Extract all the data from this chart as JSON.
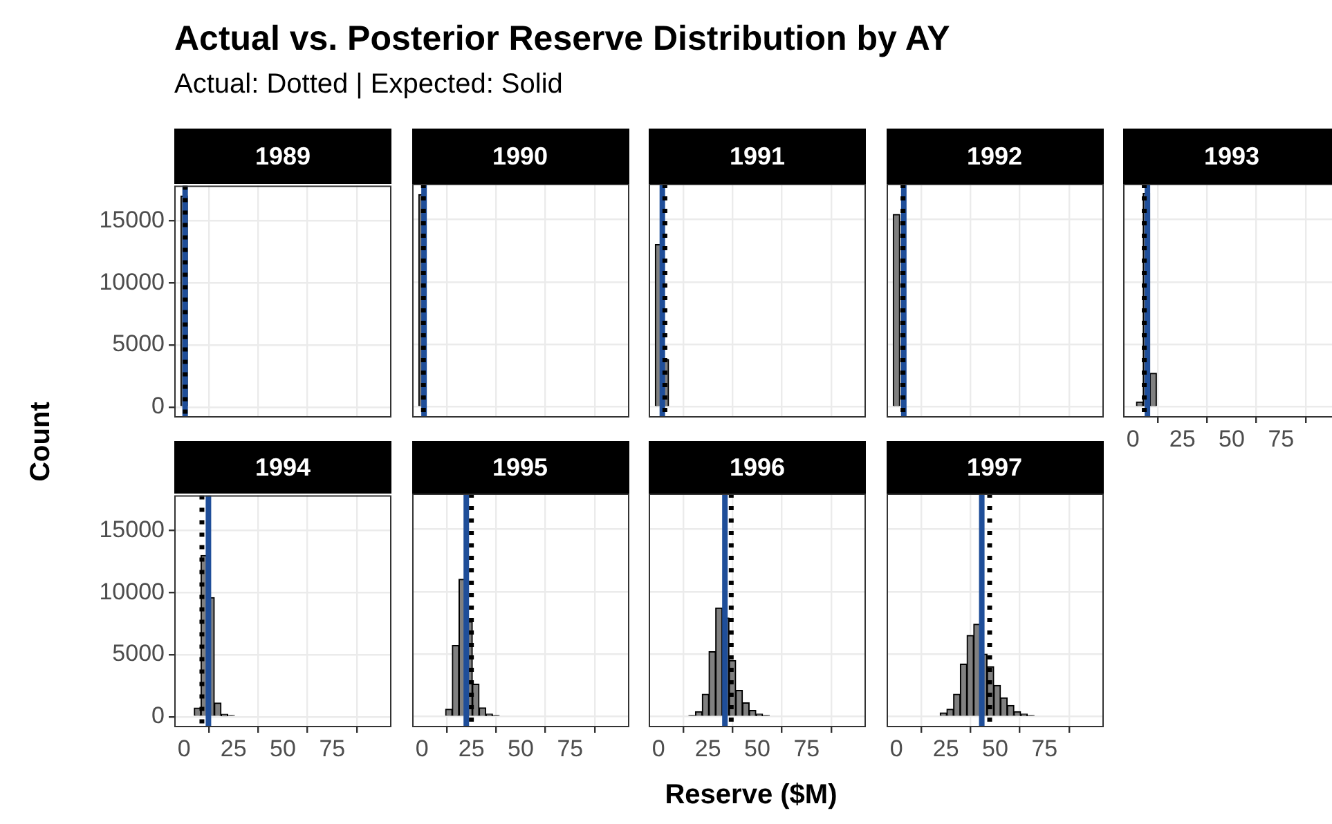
{
  "chart_data": [
    {
      "type": "histogram",
      "title": "1989",
      "annotations": [
        "Actual vs. Posterior Reserve Distribution by AY",
        "Actual: Dotted | Expected: Solid"
      ],
      "ylabel": "Count",
      "bins": [
        -1.7,
        1.7,
        5.1,
        8.5,
        11.9,
        15.3,
        18.7,
        22.1,
        25.5,
        28.9,
        32.3,
        35.7,
        39.1,
        42.5,
        45.9,
        49.3,
        52.7,
        56.1,
        59.5,
        62.9,
        66.3,
        69.7,
        73.1,
        76.5,
        79.9,
        83.3,
        86.7,
        90.1,
        93.5,
        96.9,
        100.3
      ],
      "values": [
        17000,
        0,
        0,
        0,
        0,
        0,
        0,
        0,
        0,
        0,
        0,
        0,
        0,
        0,
        0,
        0,
        0,
        0,
        0,
        0,
        0,
        0,
        0,
        0,
        0,
        0,
        0,
        0,
        0,
        0
      ],
      "color": "#808080",
      "xlim": [
        -5,
        105
      ],
      "ylim": [
        -850,
        17850
      ],
      "xticks": [
        0,
        25,
        50,
        75
      ],
      "yticks": [
        0,
        5000,
        10000,
        15000
      ],
      "grid": true,
      "tick_labels": "y",
      "ref_lines": [
        {
          "axis": "x",
          "value": 0.5,
          "color": "#1f4e99",
          "line_style": "solid"
        },
        {
          "axis": "x",
          "value": 0.5,
          "color": "#000000",
          "line_style": "dotted"
        }
      ]
    },
    {
      "type": "histogram",
      "title": "1990",
      "bins": [
        -1.7,
        1.7,
        5.1,
        8.5,
        11.9,
        15.3,
        18.7,
        22.1,
        25.5,
        28.9,
        32.3,
        35.7,
        39.1,
        42.5,
        45.9,
        49.3,
        52.7,
        56.1,
        59.5,
        62.9,
        66.3,
        69.7,
        73.1,
        76.5,
        79.9,
        83.3,
        86.7,
        90.1,
        93.5,
        96.9,
        100.3
      ],
      "values": [
        17000,
        0,
        0,
        0,
        0,
        0,
        0,
        0,
        0,
        0,
        0,
        0,
        0,
        0,
        0,
        0,
        0,
        0,
        0,
        0,
        0,
        0,
        0,
        0,
        0,
        0,
        0,
        0,
        0,
        0
      ],
      "color": "#808080",
      "xlim": [
        -5,
        105
      ],
      "ylim": [
        -850,
        17850
      ],
      "xticks": [
        0,
        25,
        50,
        75
      ],
      "yticks": [
        0,
        5000,
        10000,
        15000
      ],
      "grid": true,
      "tick_labels": false,
      "ref_lines": [
        {
          "axis": "x",
          "value": 1.0,
          "color": "#1f4e99",
          "line_style": "solid"
        },
        {
          "axis": "x",
          "value": 0.7,
          "color": "#000000",
          "line_style": "dotted"
        }
      ]
    },
    {
      "type": "histogram",
      "title": "1991",
      "bins": [
        -1.7,
        1.7,
        5.1,
        8.5,
        11.9,
        15.3,
        18.7,
        22.1,
        25.5,
        28.9,
        32.3,
        35.7,
        39.1,
        42.5,
        45.9,
        49.3,
        52.7,
        56.1,
        59.5,
        62.9,
        66.3,
        69.7,
        73.1,
        76.5,
        79.9,
        83.3,
        86.7,
        90.1,
        93.5,
        96.9,
        100.3
      ],
      "values": [
        13000,
        3800,
        0,
        0,
        0,
        0,
        0,
        0,
        0,
        0,
        0,
        0,
        0,
        0,
        0,
        0,
        0,
        0,
        0,
        0,
        0,
        0,
        0,
        0,
        0,
        0,
        0,
        0,
        0,
        0
      ],
      "color": "#808080",
      "xlim": [
        -5,
        105
      ],
      "ylim": [
        -850,
        17850
      ],
      "xticks": [
        0,
        25,
        50,
        75
      ],
      "yticks": [
        0,
        5000,
        10000,
        15000
      ],
      "grid": true,
      "tick_labels": false,
      "ref_lines": [
        {
          "axis": "x",
          "value": 1.9,
          "color": "#1f4e99",
          "line_style": "solid"
        },
        {
          "axis": "x",
          "value": 3.2,
          "color": "#000000",
          "line_style": "dotted"
        }
      ]
    },
    {
      "type": "histogram",
      "title": "1992",
      "bins": [
        -1.7,
        1.7,
        5.1,
        8.5,
        11.9,
        15.3,
        18.7,
        22.1,
        25.5,
        28.9,
        32.3,
        35.7,
        39.1,
        42.5,
        45.9,
        49.3,
        52.7,
        56.1,
        59.5,
        62.9,
        66.3,
        69.7,
        73.1,
        76.5,
        79.9,
        83.3,
        86.7,
        90.1,
        93.5,
        96.9,
        100.3
      ],
      "values": [
        15400,
        null,
        0,
        0,
        0,
        0,
        0,
        0,
        0,
        0,
        0,
        0,
        0,
        0,
        0,
        0,
        0,
        0,
        0,
        0,
        0,
        0,
        0,
        0,
        0,
        0,
        0,
        0,
        0,
        0
      ],
      "color": "#808080",
      "xlim": [
        -5,
        105
      ],
      "ylim": [
        -850,
        17850
      ],
      "xticks": [
        0,
        25,
        50,
        75
      ],
      "yticks": [
        0,
        5000,
        10000,
        15000
      ],
      "grid": true,
      "tick_labels": false,
      "ref_lines": [
        {
          "axis": "x",
          "value": 3.7,
          "color": "#1f4e99",
          "line_style": "solid"
        },
        {
          "axis": "x",
          "value": 3.3,
          "color": "#000000",
          "line_style": "dotted"
        }
      ]
    },
    {
      "type": "histogram",
      "title": "1993",
      "bins": [
        -1.7,
        1.7,
        5.1,
        8.5,
        11.9,
        15.3,
        18.7,
        22.1,
        25.5,
        28.9,
        32.3,
        35.7,
        39.1,
        42.5,
        45.9,
        49.3,
        52.7,
        56.1,
        59.5,
        62.9,
        66.3,
        69.7,
        73.1,
        76.5,
        79.9,
        83.3,
        86.7,
        90.1,
        93.5,
        96.9,
        100.3
      ],
      "values": [
        0,
        400,
        17100,
        2700,
        0,
        0,
        0,
        0,
        0,
        0,
        0,
        0,
        0,
        0,
        0,
        0,
        0,
        0,
        0,
        0,
        0,
        0,
        0,
        0,
        0,
        0,
        0,
        0,
        0,
        0
      ],
      "color": "#808080",
      "xlim": [
        -5,
        105
      ],
      "ylim": [
        -850,
        17850
      ],
      "xticks": [
        0,
        25,
        50,
        75
      ],
      "yticks": [
        0,
        5000,
        10000,
        15000
      ],
      "grid": true,
      "tick_labels": "x",
      "ref_lines": [
        {
          "axis": "x",
          "value": 7.3,
          "color": "#1f4e99",
          "line_style": "solid"
        },
        {
          "axis": "x",
          "value": 5.7,
          "color": "#000000",
          "line_style": "dotted"
        }
      ]
    },
    {
      "type": "histogram",
      "title": "1994",
      "bins": [
        -1.7,
        1.7,
        5.1,
        8.5,
        11.9,
        15.3,
        18.7,
        22.1,
        25.5,
        28.9,
        32.3,
        35.7,
        39.1,
        42.5,
        45.9,
        49.3,
        52.7,
        56.1,
        59.5,
        62.9,
        66.3,
        69.7,
        73.1,
        76.5,
        79.9,
        83.3,
        86.7,
        90.1,
        93.5,
        96.9,
        100.3
      ],
      "values": [
        0,
        0,
        700,
        13000,
        9600,
        1100,
        200,
        100,
        0,
        0,
        0,
        0,
        0,
        0,
        0,
        0,
        0,
        0,
        0,
        0,
        0,
        0,
        0,
        0,
        0,
        0,
        0,
        0,
        0,
        0
      ],
      "color": "#808080",
      "xlim": [
        -5,
        105
      ],
      "ylim": [
        -850,
        17850
      ],
      "xticks": [
        0,
        25,
        50,
        75
      ],
      "yticks": [
        0,
        5000,
        10000,
        15000
      ],
      "grid": true,
      "ref_lines": [
        {
          "axis": "x",
          "value": 12.3,
          "color": "#1f4e99",
          "line_style": "solid"
        },
        {
          "axis": "x",
          "value": 9.0,
          "color": "#000000",
          "line_style": "dotted"
        }
      ]
    },
    {
      "type": "histogram",
      "title": "1995",
      "bins": [
        -1.7,
        1.7,
        5.1,
        8.5,
        11.9,
        15.3,
        18.7,
        22.1,
        25.5,
        28.9,
        32.3,
        35.7,
        39.1,
        42.5,
        45.9,
        49.3,
        52.7,
        56.1,
        59.5,
        62.9,
        66.3,
        69.7,
        73.1,
        76.5,
        79.9,
        83.3,
        86.7,
        90.1,
        93.5,
        96.9,
        100.3
      ],
      "values": [
        0,
        0,
        0,
        0,
        600,
        5700,
        11000,
        7600,
        2600,
        700,
        200,
        100,
        0,
        0,
        0,
        0,
        0,
        0,
        0,
        0,
        0,
        0,
        0,
        0,
        0,
        0,
        0,
        0,
        0,
        0
      ],
      "color": "#808080",
      "xlim": [
        -5,
        105
      ],
      "ylim": [
        -850,
        17850
      ],
      "xticks": [
        0,
        25,
        50,
        75
      ],
      "yticks": [
        0,
        5000,
        10000,
        15000
      ],
      "grid": true,
      "tick_labels": "x",
      "ref_lines": [
        {
          "axis": "x",
          "value": 22.4,
          "color": "#1f4e99",
          "line_style": "solid"
        },
        {
          "axis": "x",
          "value": 25.0,
          "color": "#000000",
          "line_style": "dotted"
        }
      ]
    },
    {
      "type": "histogram",
      "title": "1996",
      "xlabel": "Reserve ($M)",
      "bins": [
        -1.7,
        1.7,
        5.1,
        8.5,
        11.9,
        15.3,
        18.7,
        22.1,
        25.5,
        28.9,
        32.3,
        35.7,
        39.1,
        42.5,
        45.9,
        49.3,
        52.7,
        56.1,
        59.5,
        62.9,
        66.3,
        69.7,
        73.1,
        76.5,
        79.9,
        83.3,
        86.7,
        90.1,
        93.5,
        96.9,
        100.3
      ],
      "values": [
        0,
        0,
        0,
        0,
        0,
        100,
        400,
        1800,
        5200,
        8700,
        7900,
        4500,
        2100,
        1100,
        500,
        200,
        100,
        0,
        0,
        0,
        0,
        0,
        0,
        0,
        0,
        0,
        0,
        0,
        0,
        0
      ],
      "color": "#808080",
      "xlim": [
        -5,
        105
      ],
      "ylim": [
        -850,
        17850
      ],
      "xticks": [
        0,
        25,
        50,
        75
      ],
      "yticks": [
        0,
        5000,
        10000,
        15000
      ],
      "grid": true,
      "tick_labels": "x",
      "ref_lines": [
        {
          "axis": "x",
          "value": 33.6,
          "color": "#1f4e99",
          "line_style": "solid"
        },
        {
          "axis": "x",
          "value": 36.8,
          "color": "#000000",
          "line_style": "dotted"
        }
      ]
    },
    {
      "type": "histogram",
      "title": "1997",
      "bins": [
        -1.7,
        1.7,
        5.1,
        8.5,
        11.9,
        15.3,
        18.7,
        22.1,
        25.5,
        28.9,
        32.3,
        35.7,
        39.1,
        42.5,
        45.9,
        49.3,
        52.7,
        56.1,
        59.5,
        62.9,
        66.3,
        69.7,
        73.1,
        76.5,
        79.9,
        83.3,
        86.7,
        90.1,
        93.5,
        96.9,
        100.3
      ],
      "values": [
        0,
        0,
        0,
        0,
        0,
        0,
        0,
        300,
        600,
        1800,
        4200,
        6500,
        7400,
        5000,
        4000,
        2500,
        1500,
        900,
        400,
        200,
        100,
        0,
        0,
        0,
        0,
        0,
        0,
        0,
        0,
        0
      ],
      "color": "#808080",
      "xlim": [
        -5,
        105
      ],
      "ylim": [
        -850,
        17850
      ],
      "xticks": [
        0,
        25,
        50,
        75
      ],
      "yticks": [
        0,
        5000,
        10000,
        15000
      ],
      "grid": true,
      "tick_labels": "x",
      "ref_lines": [
        {
          "axis": "x",
          "value": 43.2,
          "color": "#1f4e99",
          "line_style": "solid"
        },
        {
          "axis": "x",
          "value": 47.2,
          "color": "#000000",
          "line_style": "dotted"
        }
      ]
    }
  ]
}
